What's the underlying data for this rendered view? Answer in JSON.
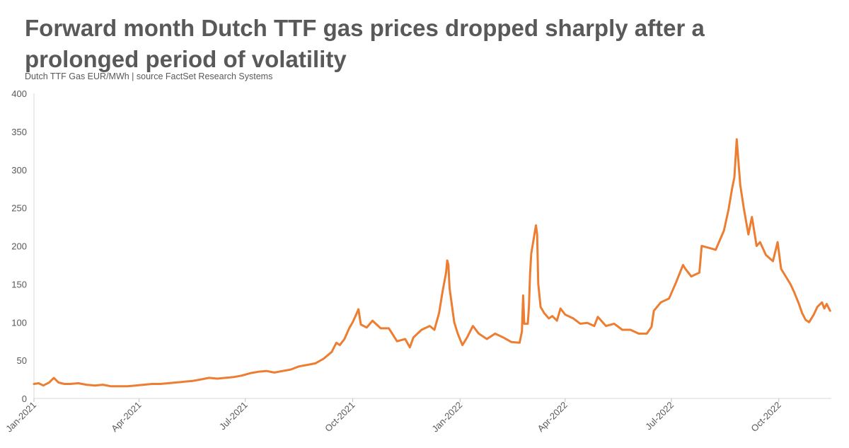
{
  "header": {
    "title": "Forward month Dutch TTF gas prices dropped sharply after a prolonged period of volatility",
    "subtitle": "Dutch TTF Gas EUR/MWh  |  source FactSet Research Systems"
  },
  "chart_data": {
    "type": "line",
    "title": "Forward month Dutch TTF gas prices dropped sharply after a prolonged period of volatility",
    "subtitle": "Dutch TTF Gas EUR/MWh  |  source FactSet Research Systems",
    "xlabel": "",
    "ylabel": "",
    "ylim": [
      0,
      400
    ],
    "yticks": [
      0,
      50,
      100,
      150,
      200,
      250,
      300,
      350,
      400
    ],
    "xlim": [
      "2021-01-01",
      "2022-11-15"
    ],
    "xticks": [
      {
        "date": "2021-01-01",
        "label": "Jan-2021"
      },
      {
        "date": "2021-04-01",
        "label": "Apr-2021"
      },
      {
        "date": "2021-07-01",
        "label": "Jul-2021"
      },
      {
        "date": "2021-10-01",
        "label": "Oct-2021"
      },
      {
        "date": "2022-01-01",
        "label": "Jan-2022"
      },
      {
        "date": "2022-04-01",
        "label": "Apr-2022"
      },
      {
        "date": "2022-07-01",
        "label": "Jul-2022"
      },
      {
        "date": "2022-10-01",
        "label": "Oct-2022"
      }
    ],
    "grid": false,
    "legend": "none",
    "series_color": "#ED7D31",
    "series": [
      {
        "name": "",
        "points": [
          [
            "2021-01-01",
            19
          ],
          [
            "2021-01-05",
            20
          ],
          [
            "2021-01-09",
            17
          ],
          [
            "2021-01-14",
            21
          ],
          [
            "2021-01-18",
            27
          ],
          [
            "2021-01-22",
            21
          ],
          [
            "2021-01-27",
            19
          ],
          [
            "2021-02-01",
            19
          ],
          [
            "2021-02-08",
            20
          ],
          [
            "2021-02-15",
            18
          ],
          [
            "2021-02-22",
            17
          ],
          [
            "2021-03-01",
            18
          ],
          [
            "2021-03-08",
            16
          ],
          [
            "2021-03-15",
            16
          ],
          [
            "2021-03-22",
            16
          ],
          [
            "2021-03-29",
            17
          ],
          [
            "2021-04-05",
            18
          ],
          [
            "2021-04-12",
            19
          ],
          [
            "2021-04-19",
            19
          ],
          [
            "2021-04-26",
            20
          ],
          [
            "2021-05-03",
            21
          ],
          [
            "2021-05-10",
            22
          ],
          [
            "2021-05-17",
            23
          ],
          [
            "2021-05-24",
            25
          ],
          [
            "2021-05-31",
            27
          ],
          [
            "2021-06-07",
            26
          ],
          [
            "2021-06-14",
            27
          ],
          [
            "2021-06-21",
            28
          ],
          [
            "2021-06-28",
            30
          ],
          [
            "2021-07-05",
            33
          ],
          [
            "2021-07-12",
            35
          ],
          [
            "2021-07-19",
            36
          ],
          [
            "2021-07-26",
            34
          ],
          [
            "2021-08-02",
            36
          ],
          [
            "2021-08-09",
            38
          ],
          [
            "2021-08-16",
            42
          ],
          [
            "2021-08-23",
            44
          ],
          [
            "2021-08-30",
            46
          ],
          [
            "2021-09-06",
            52
          ],
          [
            "2021-09-13",
            61
          ],
          [
            "2021-09-17",
            73
          ],
          [
            "2021-09-20",
            70
          ],
          [
            "2021-09-24",
            78
          ],
          [
            "2021-09-28",
            92
          ],
          [
            "2021-10-01",
            100
          ],
          [
            "2021-10-04",
            110
          ],
          [
            "2021-10-06",
            117
          ],
          [
            "2021-10-08",
            97
          ],
          [
            "2021-10-13",
            93
          ],
          [
            "2021-10-18",
            102
          ],
          [
            "2021-10-25",
            92
          ],
          [
            "2021-11-01",
            92
          ],
          [
            "2021-11-08",
            75
          ],
          [
            "2021-11-15",
            78
          ],
          [
            "2021-11-19",
            67
          ],
          [
            "2021-11-22",
            80
          ],
          [
            "2021-11-29",
            90
          ],
          [
            "2021-12-06",
            95
          ],
          [
            "2021-12-10",
            90
          ],
          [
            "2021-12-14",
            112
          ],
          [
            "2021-12-17",
            140
          ],
          [
            "2021-12-20",
            165
          ],
          [
            "2021-12-21",
            181
          ],
          [
            "2021-12-22",
            175
          ],
          [
            "2021-12-23",
            145
          ],
          [
            "2021-12-27",
            100
          ],
          [
            "2021-12-30",
            85
          ],
          [
            "2022-01-03",
            70
          ],
          [
            "2022-01-07",
            80
          ],
          [
            "2022-01-12",
            95
          ],
          [
            "2022-01-17",
            85
          ],
          [
            "2022-01-24",
            78
          ],
          [
            "2022-01-31",
            85
          ],
          [
            "2022-02-07",
            80
          ],
          [
            "2022-02-14",
            74
          ],
          [
            "2022-02-21",
            73
          ],
          [
            "2022-02-23",
            88
          ],
          [
            "2022-02-24",
            135
          ],
          [
            "2022-02-25",
            98
          ],
          [
            "2022-02-28",
            98
          ],
          [
            "2022-03-01",
            120
          ],
          [
            "2022-03-02",
            165
          ],
          [
            "2022-03-03",
            190
          ],
          [
            "2022-03-07",
            227
          ],
          [
            "2022-03-08",
            215
          ],
          [
            "2022-03-09",
            150
          ],
          [
            "2022-03-11",
            120
          ],
          [
            "2022-03-14",
            112
          ],
          [
            "2022-03-18",
            105
          ],
          [
            "2022-03-21",
            108
          ],
          [
            "2022-03-25",
            102
          ],
          [
            "2022-03-28",
            118
          ],
          [
            "2022-04-01",
            110
          ],
          [
            "2022-04-08",
            105
          ],
          [
            "2022-04-14",
            98
          ],
          [
            "2022-04-20",
            99
          ],
          [
            "2022-04-26",
            95
          ],
          [
            "2022-04-29",
            107
          ],
          [
            "2022-05-06",
            95
          ],
          [
            "2022-05-13",
            98
          ],
          [
            "2022-05-20",
            90
          ],
          [
            "2022-05-27",
            90
          ],
          [
            "2022-06-03",
            85
          ],
          [
            "2022-06-10",
            85
          ],
          [
            "2022-06-14",
            94
          ],
          [
            "2022-06-16",
            115
          ],
          [
            "2022-06-22",
            126
          ],
          [
            "2022-06-29",
            131
          ],
          [
            "2022-07-05",
            152
          ],
          [
            "2022-07-11",
            175
          ],
          [
            "2022-07-13",
            170
          ],
          [
            "2022-07-18",
            160
          ],
          [
            "2022-07-25",
            165
          ],
          [
            "2022-07-27",
            200
          ],
          [
            "2022-08-01",
            198
          ],
          [
            "2022-08-08",
            195
          ],
          [
            "2022-08-15",
            220
          ],
          [
            "2022-08-19",
            248
          ],
          [
            "2022-08-22",
            275
          ],
          [
            "2022-08-24",
            290
          ],
          [
            "2022-08-26",
            340
          ],
          [
            "2022-08-29",
            280
          ],
          [
            "2022-09-01",
            250
          ],
          [
            "2022-09-05",
            215
          ],
          [
            "2022-09-08",
            238
          ],
          [
            "2022-09-12",
            200
          ],
          [
            "2022-09-15",
            205
          ],
          [
            "2022-09-20",
            188
          ],
          [
            "2022-09-26",
            180
          ],
          [
            "2022-09-30",
            205
          ],
          [
            "2022-10-03",
            170
          ],
          [
            "2022-10-07",
            160
          ],
          [
            "2022-10-11",
            150
          ],
          [
            "2022-10-14",
            140
          ],
          [
            "2022-10-18",
            125
          ],
          [
            "2022-10-21",
            112
          ],
          [
            "2022-10-24",
            103
          ],
          [
            "2022-10-27",
            100
          ],
          [
            "2022-10-31",
            110
          ],
          [
            "2022-11-03",
            120
          ],
          [
            "2022-11-07",
            126
          ],
          [
            "2022-11-09",
            118
          ],
          [
            "2022-11-11",
            124
          ],
          [
            "2022-11-14",
            115
          ]
        ]
      }
    ]
  }
}
